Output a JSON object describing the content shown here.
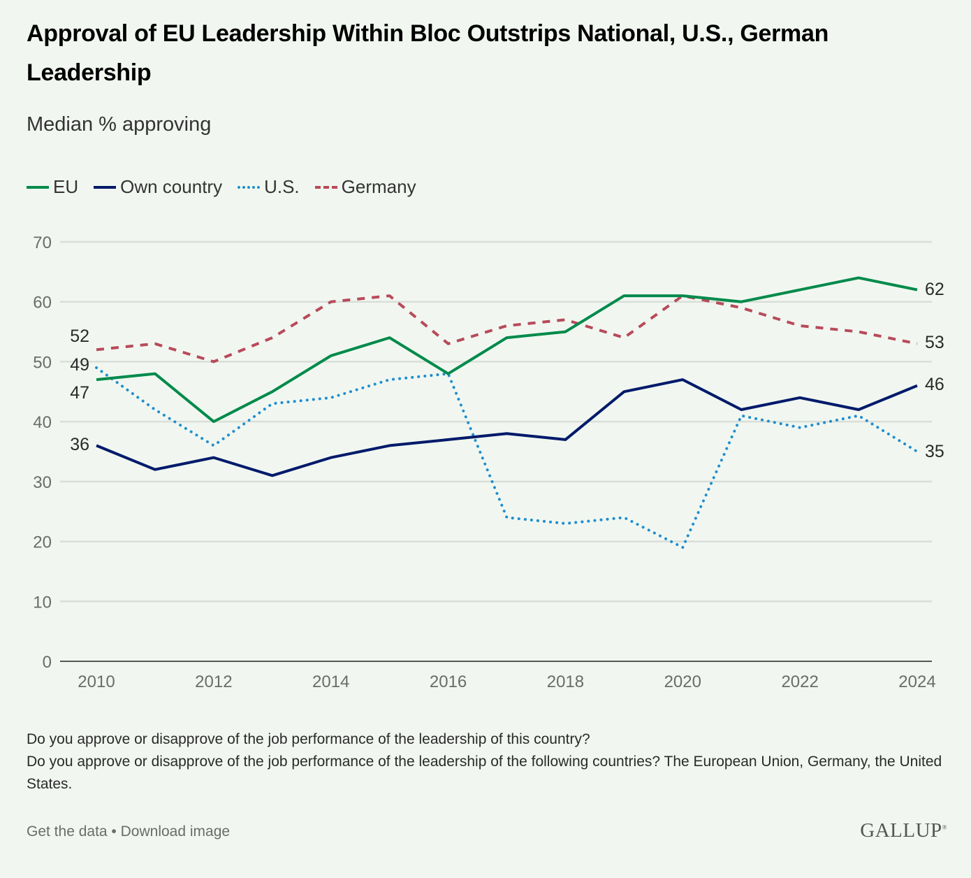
{
  "header": {
    "title": "Approval of EU Leadership Within Bloc Outstrips National, U.S., German Leadership",
    "subtitle": "Median % approving"
  },
  "legend": [
    {
      "name": "EU",
      "color": "#008a4b",
      "style": "solid"
    },
    {
      "name": "Own country",
      "color": "#001a6b",
      "style": "solid"
    },
    {
      "name": "U.S.",
      "color": "#1f8ed0",
      "style": "dotted"
    },
    {
      "name": "Germany",
      "color": "#b84a5a",
      "style": "dashed"
    }
  ],
  "chart_data": {
    "type": "line",
    "title": "Approval of EU Leadership Within Bloc Outstrips National, U.S., German Leadership",
    "subtitle": "Median % approving",
    "xlabel": "",
    "ylabel": "",
    "x": [
      2010,
      2011,
      2012,
      2013,
      2014,
      2015,
      2016,
      2017,
      2018,
      2019,
      2020,
      2021,
      2022,
      2023,
      2024
    ],
    "x_ticks": [
      "2010",
      "2012",
      "2014",
      "2016",
      "2018",
      "2020",
      "2022",
      "2024"
    ],
    "y_ticks": [
      "0",
      "10",
      "20",
      "30",
      "40",
      "50",
      "60",
      "70"
    ],
    "ylim": [
      0,
      70
    ],
    "grid": true,
    "legend_position": "top-left",
    "series": [
      {
        "name": "EU",
        "color": "#008a4b",
        "style": "solid",
        "values": [
          47,
          48,
          40,
          45,
          51,
          54,
          48,
          54,
          55,
          61,
          61,
          60,
          62,
          64,
          62
        ],
        "start_label": "47",
        "end_label": "62"
      },
      {
        "name": "Own country",
        "color": "#001a6b",
        "style": "solid",
        "values": [
          36,
          32,
          34,
          31,
          34,
          36,
          37,
          38,
          37,
          45,
          47,
          42,
          44,
          42,
          46
        ],
        "start_label": "36",
        "end_label": "46"
      },
      {
        "name": "U.S.",
        "color": "#1f8ed0",
        "style": "dotted",
        "values": [
          49,
          42,
          36,
          43,
          44,
          47,
          48,
          24,
          23,
          24,
          19,
          41,
          39,
          41,
          35
        ],
        "start_label": "49",
        "end_label": "35"
      },
      {
        "name": "Germany",
        "color": "#b84a5a",
        "style": "dashed",
        "values": [
          52,
          53,
          50,
          54,
          60,
          61,
          53,
          56,
          57,
          54,
          61,
          59,
          56,
          55,
          53
        ],
        "start_label": "52",
        "end_label": "53"
      }
    ]
  },
  "notes": {
    "question_1": "Do you approve or disapprove of the job performance of the leadership of this country?",
    "question_2": "Do you approve or disapprove of the job performance of the leadership of the following countries? The European Union, Germany, the United States."
  },
  "footer": {
    "get_data": "Get the data",
    "separator": " • ",
    "download": "Download image",
    "brand": "GALLUP",
    "brand_mark": "®"
  }
}
